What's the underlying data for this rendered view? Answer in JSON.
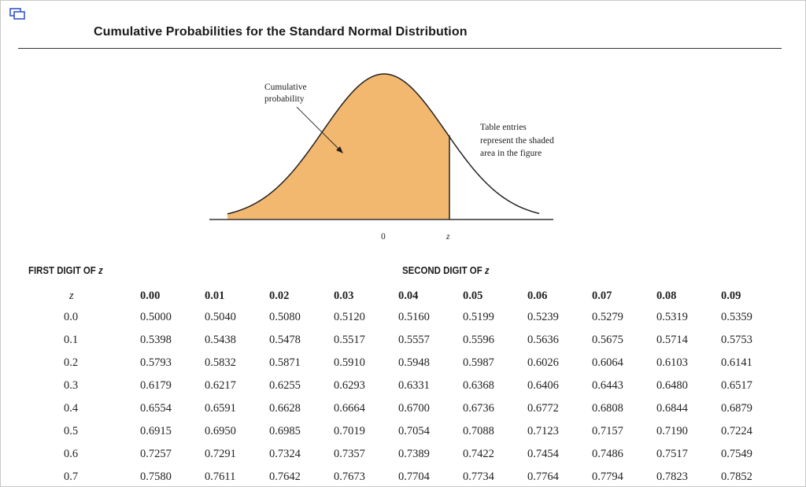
{
  "title": "Cumulative Probabilities for the Standard Normal Distribution",
  "figure": {
    "callout_left": [
      "Cumulative",
      "probability"
    ],
    "callout_right": [
      "Table entries",
      "represent the shaded",
      "area in the figure"
    ],
    "axis_zero": "0",
    "axis_z": "z",
    "shade_color": "#f3b870",
    "curve_color": "#222222"
  },
  "headings": {
    "first_digit_prefix": "FIRST DIGIT OF ",
    "first_digit_var": "z",
    "second_digit_prefix": "SECOND DIGIT OF ",
    "second_digit_var": "z"
  },
  "table": {
    "z_header": "z",
    "columns": [
      "0.00",
      "0.01",
      "0.02",
      "0.03",
      "0.04",
      "0.05",
      "0.06",
      "0.07",
      "0.08",
      "0.09"
    ],
    "rows": [
      {
        "z": "0.0",
        "values": [
          "0.5000",
          "0.5040",
          "0.5080",
          "0.5120",
          "0.5160",
          "0.5199",
          "0.5239",
          "0.5279",
          "0.5319",
          "0.5359"
        ]
      },
      {
        "z": "0.1",
        "values": [
          "0.5398",
          "0.5438",
          "0.5478",
          "0.5517",
          "0.5557",
          "0.5596",
          "0.5636",
          "0.5675",
          "0.5714",
          "0.5753"
        ]
      },
      {
        "z": "0.2",
        "values": [
          "0.5793",
          "0.5832",
          "0.5871",
          "0.5910",
          "0.5948",
          "0.5987",
          "0.6026",
          "0.6064",
          "0.6103",
          "0.6141"
        ]
      },
      {
        "z": "0.3",
        "values": [
          "0.6179",
          "0.6217",
          "0.6255",
          "0.6293",
          "0.6331",
          "0.6368",
          "0.6406",
          "0.6443",
          "0.6480",
          "0.6517"
        ]
      },
      {
        "z": "0.4",
        "values": [
          "0.6554",
          "0.6591",
          "0.6628",
          "0.6664",
          "0.6700",
          "0.6736",
          "0.6772",
          "0.6808",
          "0.6844",
          "0.6879"
        ]
      },
      {
        "z": "0.5",
        "values": [
          "0.6915",
          "0.6950",
          "0.6985",
          "0.7019",
          "0.7054",
          "0.7088",
          "0.7123",
          "0.7157",
          "0.7190",
          "0.7224"
        ]
      },
      {
        "z": "0.6",
        "values": [
          "0.7257",
          "0.7291",
          "0.7324",
          "0.7357",
          "0.7389",
          "0.7422",
          "0.7454",
          "0.7486",
          "0.7517",
          "0.7549"
        ]
      },
      {
        "z": "0.7",
        "values": [
          "0.7580",
          "0.7611",
          "0.7642",
          "0.7673",
          "0.7704",
          "0.7734",
          "0.7764",
          "0.7794",
          "0.7823",
          "0.7852"
        ]
      }
    ]
  }
}
